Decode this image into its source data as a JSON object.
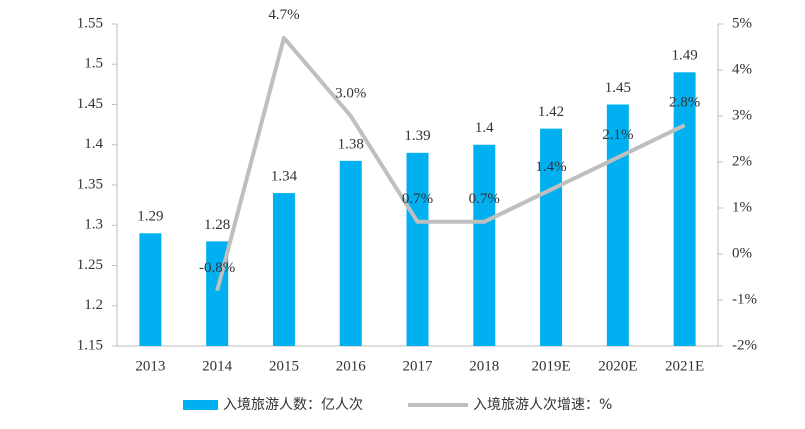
{
  "chart_data": {
    "type": "bar_line",
    "categories": [
      "2013",
      "2014",
      "2015",
      "2016",
      "2017",
      "2018",
      "2019E",
      "2020E",
      "2021E"
    ],
    "series": [
      {
        "name": "入境旅游人数：亿人次",
        "type": "bar",
        "color": "#00b0f0",
        "values": [
          1.29,
          1.28,
          1.34,
          1.38,
          1.39,
          1.4,
          1.42,
          1.45,
          1.49
        ]
      },
      {
        "name": "入境旅游人次增速：%",
        "type": "line",
        "axis": "y2",
        "color": "#bfbfbf",
        "values": [
          null,
          -0.8,
          4.7,
          3.0,
          0.7,
          0.7,
          1.4,
          2.1,
          2.8
        ],
        "value_labels": [
          null,
          "-0.8%",
          "4.7%",
          "3.0%",
          "0.7%",
          "0.7%",
          "1.4%",
          "2.1%",
          "2.8%"
        ]
      }
    ],
    "ylim": [
      1.15,
      1.55
    ],
    "yticks": [
      1.15,
      1.2,
      1.25,
      1.3,
      1.35,
      1.4,
      1.45,
      1.5,
      1.55
    ],
    "y2lim": [
      -2,
      5
    ],
    "y2ticks": [
      {
        "value": -2,
        "label": "-2%"
      },
      {
        "value": -1,
        "label": "-1%"
      },
      {
        "value": 0,
        "label": "0%"
      },
      {
        "value": 1,
        "label": "1%"
      },
      {
        "value": 2,
        "label": "2%"
      },
      {
        "value": 3,
        "label": "3%"
      },
      {
        "value": 4,
        "label": "4%"
      },
      {
        "value": 5,
        "label": "5%"
      }
    ],
    "grid": false,
    "legend": "bottom"
  }
}
